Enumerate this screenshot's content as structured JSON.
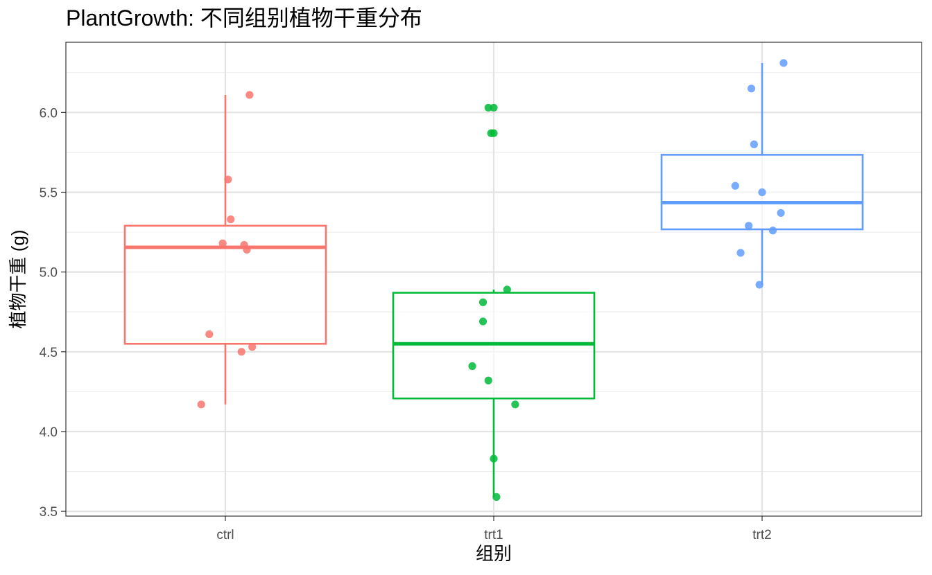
{
  "chart_data": {
    "type": "boxplot",
    "title": "PlantGrowth: 不同组别植物干重分布",
    "xlabel": "组别",
    "ylabel": "植物干重 (g)",
    "categories": [
      "ctrl",
      "trt1",
      "trt2"
    ],
    "ylim": [
      3.47,
      6.44
    ],
    "yticks": [
      3.5,
      4.0,
      4.5,
      5.0,
      5.5,
      6.0
    ],
    "ytick_labels": [
      "3.5",
      "4.0",
      "4.5",
      "5.0",
      "5.5",
      "6.0"
    ],
    "grid": true,
    "legend": "none",
    "series": [
      {
        "color": "#F8766D",
        "box": {
          "whisker_low": 4.17,
          "q1": 4.55,
          "median": 5.155,
          "q3": 5.29,
          "whisker_high": 6.11
        },
        "points": [
          {
            "jitter": 0.09,
            "y": 6.11
          },
          {
            "jitter": 0.01,
            "y": 5.58
          },
          {
            "jitter": 0.02,
            "y": 5.33
          },
          {
            "jitter": -0.01,
            "y": 5.18
          },
          {
            "jitter": 0.07,
            "y": 5.17
          },
          {
            "jitter": 0.08,
            "y": 5.14
          },
          {
            "jitter": -0.06,
            "y": 4.61
          },
          {
            "jitter": 0.06,
            "y": 4.5
          },
          {
            "jitter": 0.1,
            "y": 4.53
          },
          {
            "jitter": -0.09,
            "y": 4.17
          }
        ]
      },
      {
        "color": "#00BA38",
        "box": {
          "whisker_low": 3.59,
          "q1": 4.2075,
          "median": 4.55,
          "q3": 4.87,
          "whisker_high": 4.89
        },
        "points": [
          {
            "jitter": -0.02,
            "y": 6.03
          },
          {
            "jitter": 0.0,
            "y": 6.03
          },
          {
            "jitter": -0.01,
            "y": 5.87
          },
          {
            "jitter": 0.0,
            "y": 5.87
          },
          {
            "jitter": 0.05,
            "y": 4.89
          },
          {
            "jitter": -0.04,
            "y": 4.81
          },
          {
            "jitter": -0.04,
            "y": 4.69
          },
          {
            "jitter": -0.08,
            "y": 4.41
          },
          {
            "jitter": -0.02,
            "y": 4.32
          },
          {
            "jitter": 0.08,
            "y": 4.17
          },
          {
            "jitter": 0.0,
            "y": 3.83
          },
          {
            "jitter": 0.01,
            "y": 3.59
          }
        ]
      },
      {
        "color": "#619CFF",
        "box": {
          "whisker_low": 4.92,
          "q1": 5.2675,
          "median": 5.435,
          "q3": 5.735,
          "whisker_high": 6.31
        },
        "points": [
          {
            "jitter": 0.08,
            "y": 6.31
          },
          {
            "jitter": -0.04,
            "y": 6.15
          },
          {
            "jitter": -0.03,
            "y": 5.8
          },
          {
            "jitter": -0.1,
            "y": 5.54
          },
          {
            "jitter": 0.0,
            "y": 5.5
          },
          {
            "jitter": 0.07,
            "y": 5.37
          },
          {
            "jitter": -0.05,
            "y": 5.29
          },
          {
            "jitter": 0.04,
            "y": 5.26
          },
          {
            "jitter": -0.08,
            "y": 5.12
          },
          {
            "jitter": -0.01,
            "y": 4.92
          }
        ]
      }
    ]
  }
}
